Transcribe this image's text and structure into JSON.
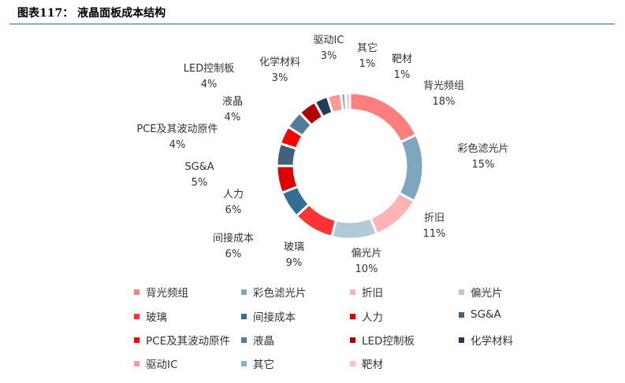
{
  "title": "图表117：   液晶面板成本结构",
  "chart_data": {
    "type": "pie",
    "donut": true,
    "title": "",
    "legend": "bottom",
    "categories": [
      "背光频组",
      "彩色滤光片",
      "折旧",
      "偏光片",
      "玻璃",
      "间接成本",
      "人力",
      "SG&A",
      "PCE及其波动原件",
      "液晶",
      "LED控制板",
      "化学材料",
      "驱动IC",
      "其它",
      "靶材"
    ],
    "values": [
      18,
      15,
      11,
      10,
      9,
      6,
      6,
      5,
      4,
      4,
      4,
      3,
      3,
      1,
      1
    ],
    "labels": [
      "18%",
      "15%",
      "11%",
      "10%",
      "9%",
      "6%",
      "6%",
      "5%",
      "4%",
      "4%",
      "4%",
      "3%",
      "3%",
      "1%",
      "1%"
    ],
    "colors": [
      "#FF7F7F",
      "#7FA6BF",
      "#FFB3B3",
      "#B3CAD9",
      "#FF3333",
      "#336E94",
      "#E00000",
      "#41617A",
      "#FF0000",
      "#507D9C",
      "#B30000",
      "#1F3D57",
      "#FF9999",
      "#8AAFCB",
      "#FFC0C0"
    ]
  }
}
